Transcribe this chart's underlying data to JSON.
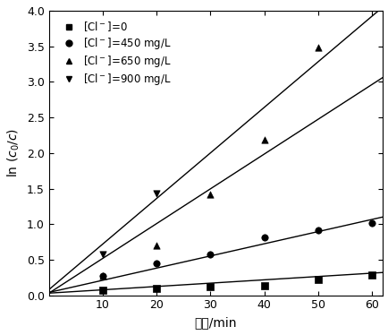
{
  "xlabel": "时间/min",
  "xlim": [
    0,
    62
  ],
  "ylim": [
    0,
    4.0
  ],
  "xticks": [
    10,
    20,
    30,
    40,
    50,
    60
  ],
  "yticks": [
    0,
    0.5,
    1.0,
    1.5,
    2.0,
    2.5,
    3.0,
    3.5,
    4.0
  ],
  "series": [
    {
      "label": "[Cl$^-$]=0",
      "marker": "s",
      "x": [
        10,
        20,
        30,
        40,
        50,
        60
      ],
      "y": [
        0.07,
        0.1,
        0.12,
        0.13,
        0.22,
        0.29
      ],
      "line_x": [
        0,
        62
      ],
      "line_y": [
        0.03,
        0.32
      ]
    },
    {
      "label": "[Cl$^-$]=450 mg/L",
      "marker": "o",
      "x": [
        10,
        20,
        30,
        40,
        50,
        60
      ],
      "y": [
        0.27,
        0.45,
        0.57,
        0.82,
        0.92,
        1.02
      ],
      "line_x": [
        0,
        62
      ],
      "line_y": [
        0.04,
        1.1
      ]
    },
    {
      "label": "[Cl$^-$]=650 mg/L",
      "marker": "^",
      "x": [
        10,
        20,
        30,
        40,
        50
      ],
      "y": [
        0.27,
        0.7,
        1.42,
        2.18,
        3.48
      ],
      "line_x": [
        0,
        62
      ],
      "line_y": [
        0.03,
        3.06
      ]
    },
    {
      "label": "[Cl$^-$]=900 mg/L",
      "marker": "v",
      "x": [
        10,
        20
      ],
      "y": [
        0.57,
        1.43
      ],
      "line_x": [
        0,
        62
      ],
      "line_y": [
        0.08,
        4.05
      ]
    }
  ],
  "figsize": [
    4.35,
    3.74
  ],
  "dpi": 100
}
